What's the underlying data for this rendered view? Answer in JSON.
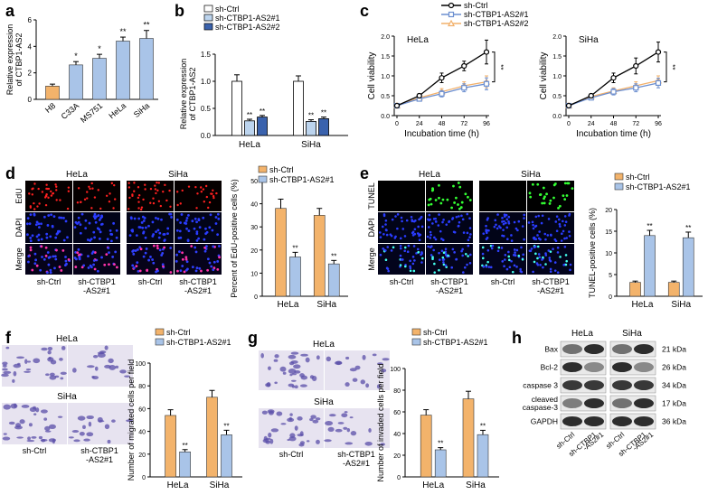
{
  "panels": {
    "a": {
      "label": "a",
      "chart_data": {
        "type": "bar",
        "ylabel_lines": [
          "Relative expression",
          "of CTBP1-AS2"
        ],
        "categories": [
          "H8",
          "C33A",
          "MS751",
          "HeLa",
          "SiHa"
        ],
        "values": [
          1.0,
          2.6,
          3.1,
          4.4,
          4.6
        ],
        "errors": [
          0.15,
          0.25,
          0.3,
          0.3,
          0.6
        ],
        "sig": [
          "",
          "*",
          "*",
          "**",
          "**"
        ],
        "colors": [
          "#f3b36b",
          "#a9c4e8",
          "#a9c4e8",
          "#a9c4e8",
          "#a9c4e8"
        ],
        "yticks": [
          0,
          2,
          4,
          6
        ],
        "ylim": [
          0,
          6
        ]
      }
    },
    "b": {
      "label": "b",
      "chart_data": {
        "type": "bar",
        "ylabel_lines": [
          "Relative expression",
          "of CTBP1-AS2"
        ],
        "groups": [
          "HeLa",
          "SiHa"
        ],
        "series": [
          {
            "name": "sh-Ctrl",
            "values": [
              1.0,
              1.0
            ],
            "errors": [
              0.12,
              0.1
            ],
            "color": "#ffffff"
          },
          {
            "name": "sh-CTBP1-AS2#1",
            "values": [
              0.27,
              0.26
            ],
            "errors": [
              0.03,
              0.03
            ],
            "color": "#bcd4ee"
          },
          {
            "name": "sh-CTBP1-AS2#2",
            "values": [
              0.34,
              0.31
            ],
            "errors": [
              0.03,
              0.03
            ],
            "color": "#3a62ad"
          }
        ],
        "sig": [
          "**",
          "**"
        ],
        "yticks": [
          0.0,
          0.5,
          1.0,
          1.5
        ],
        "ylim": [
          0,
          1.5
        ]
      }
    },
    "c": {
      "label": "c",
      "legend": [
        "sh-Ctrl",
        "sh-CTBP1-AS2#1",
        "sh-CTBP1-AS2#2"
      ],
      "charts": [
        {
          "type": "line",
          "title": "HeLa",
          "xlabel": "Incubation time (h)",
          "ylabel": "Cell viability",
          "x": [
            0,
            24,
            48,
            72,
            96
          ],
          "xticks": [
            0,
            24,
            48,
            72,
            96
          ],
          "yticks": [
            0.0,
            0.5,
            1.0,
            1.5,
            2.0
          ],
          "ylim": [
            0,
            2.0
          ],
          "series": [
            {
              "name": "sh-Ctrl",
              "values": [
                0.25,
                0.5,
                0.95,
                1.25,
                1.6
              ],
              "errors": [
                0.02,
                0.05,
                0.12,
                0.12,
                0.3
              ],
              "color": "#000000",
              "marker": "circle"
            },
            {
              "name": "sh-CTBP1-AS2#1",
              "values": [
                0.25,
                0.42,
                0.55,
                0.7,
                0.8
              ],
              "errors": [
                0.02,
                0.05,
                0.08,
                0.1,
                0.15
              ],
              "color": "#6c8fd0",
              "marker": "square"
            },
            {
              "name": "sh-CTBP1-AS2#2",
              "values": [
                0.25,
                0.45,
                0.6,
                0.75,
                0.85
              ],
              "errors": [
                0.02,
                0.05,
                0.08,
                0.1,
                0.15
              ],
              "color": "#f2b06a",
              "marker": "triangle"
            }
          ],
          "sig": "**"
        },
        {
          "type": "line",
          "title": "SiHa",
          "xlabel": "Incubation time (h)",
          "ylabel": "Cell viability",
          "x": [
            0,
            24,
            48,
            72,
            96
          ],
          "xticks": [
            0,
            24,
            48,
            72,
            96
          ],
          "yticks": [
            0.0,
            0.5,
            1.0,
            1.5,
            2.0
          ],
          "ylim": [
            0,
            2.0
          ],
          "series": [
            {
              "name": "sh-Ctrl",
              "values": [
                0.25,
                0.5,
                0.95,
                1.25,
                1.6
              ],
              "errors": [
                0.02,
                0.05,
                0.12,
                0.2,
                0.25
              ],
              "color": "#000000",
              "marker": "circle"
            },
            {
              "name": "sh-CTBP1-AS2#1",
              "values": [
                0.25,
                0.45,
                0.6,
                0.7,
                0.82
              ],
              "errors": [
                0.02,
                0.05,
                0.08,
                0.1,
                0.12
              ],
              "color": "#6c8fd0",
              "marker": "square"
            },
            {
              "name": "sh-CTBP1-AS2#2",
              "values": [
                0.25,
                0.48,
                0.62,
                0.75,
                0.88
              ],
              "errors": [
                0.02,
                0.05,
                0.08,
                0.1,
                0.12
              ],
              "color": "#f2b06a",
              "marker": "triangle"
            }
          ],
          "sig": "**"
        }
      ]
    },
    "d": {
      "label": "d",
      "cell_lines": [
        "HeLa",
        "SiHa"
      ],
      "rows": [
        "EdU",
        "DAPI",
        "Merge"
      ],
      "cols": [
        "sh-Ctrl",
        "sh-CTBP1\n-AS2#1"
      ],
      "col_labels": [
        "sh-Ctrl",
        "sh-CTBP1",
        "-AS2#1"
      ],
      "chart_data": {
        "type": "bar",
        "ylabel": "Percent of EdU-positive cells (%)",
        "groups": [
          "HeLa",
          "SiHa"
        ],
        "series": [
          {
            "name": "sh-Ctrl",
            "values": [
              38,
              35
            ],
            "errors": [
              4,
              3
            ],
            "color": "#f3b36b"
          },
          {
            "name": "sh-CTBP1-AS2#1",
            "values": [
              17,
              14
            ],
            "errors": [
              2,
              1.5
            ],
            "color": "#a9c4e8"
          }
        ],
        "sig": [
          "**",
          "**"
        ],
        "yticks": [
          0,
          10,
          20,
          30,
          40,
          50
        ],
        "ylim": [
          0,
          50
        ]
      }
    },
    "e": {
      "label": "e",
      "cell_lines": [
        "HeLa",
        "SiHa"
      ],
      "rows": [
        "TUNEL",
        "DAPI",
        "Merge"
      ],
      "col_labels": [
        "sh-Ctrl",
        "sh-CTBP1",
        "-AS2#1"
      ],
      "chart_data": {
        "type": "bar",
        "ylabel": "TUNEL-positive cells (%)",
        "groups": [
          "HeLa",
          "SiHa"
        ],
        "series": [
          {
            "name": "sh-Ctrl",
            "values": [
              3.2,
              3.2
            ],
            "errors": [
              0.3,
              0.3
            ],
            "color": "#f3b36b"
          },
          {
            "name": "sh-CTBP1-AS2#1",
            "values": [
              14,
              13.5
            ],
            "errors": [
              1.2,
              1.3
            ],
            "color": "#a9c4e8"
          }
        ],
        "sig": [
          "**",
          "**"
        ],
        "yticks": [
          0,
          5,
          10,
          15,
          20
        ],
        "ylim": [
          0,
          20
        ]
      }
    },
    "f": {
      "label": "f",
      "cell_lines": [
        "HeLa",
        "SiHa"
      ],
      "col_labels": [
        "sh-Ctrl",
        "sh-CTBP1",
        "-AS2#1"
      ],
      "chart_data": {
        "type": "bar",
        "ylabel_lines": [
          "Number of migrated cells per field"
        ],
        "groups": [
          "HeLa",
          "SiHa"
        ],
        "series": [
          {
            "name": "sh-Ctrl",
            "values": [
              54,
              70
            ],
            "errors": [
              5,
              6
            ],
            "color": "#f3b36b"
          },
          {
            "name": "sh-CTBP1-AS2#1",
            "values": [
              22,
              37
            ],
            "errors": [
              2,
              4
            ],
            "color": "#a9c4e8"
          }
        ],
        "sig": [
          "**",
          "**"
        ],
        "yticks": [
          0,
          20,
          40,
          60,
          80,
          100
        ],
        "ylim": [
          0,
          100
        ]
      }
    },
    "g": {
      "label": "g",
      "cell_lines": [
        "HeLa",
        "SiHa"
      ],
      "col_labels": [
        "sh-Ctrl",
        "sh-CTBP1",
        "-AS2#1"
      ],
      "chart_data": {
        "type": "bar",
        "ylabel_lines": [
          "Number of invaded cells per field"
        ],
        "groups": [
          "HeLa",
          "SiHa"
        ],
        "series": [
          {
            "name": "sh-Ctrl",
            "values": [
              57,
              72
            ],
            "errors": [
              5,
              7
            ],
            "color": "#f3b36b"
          },
          {
            "name": "sh-CTBP1-AS2#1",
            "values": [
              25,
              39
            ],
            "errors": [
              2,
              4
            ],
            "color": "#a9c4e8"
          }
        ],
        "sig": [
          "**",
          "**"
        ],
        "yticks": [
          0,
          20,
          40,
          60,
          80,
          100
        ],
        "ylim": [
          0,
          100
        ]
      }
    },
    "h": {
      "label": "h",
      "cell_lines": [
        "HeLa",
        "SiHa"
      ],
      "proteins": [
        "Bax",
        "Bcl-2",
        "caspase 3",
        "cleaved\ncaspase-3",
        "GAPDH"
      ],
      "protein_lines": [
        [
          "Bax"
        ],
        [
          "Bcl-2"
        ],
        [
          "caspase 3"
        ],
        [
          "cleaved",
          "caspase-3"
        ],
        [
          "GAPDH"
        ]
      ],
      "sizes": [
        "21 kDa",
        "26 kDa",
        "34 kDa",
        "17 kDa",
        "36 kDa"
      ],
      "lanes": [
        [
          "sh-Ctrl"
        ],
        [
          "sh-CTBP1",
          "-AS2#1"
        ],
        [
          "sh-Ctrl"
        ],
        [
          "sh-CTBP1",
          "-AS2#1"
        ]
      ],
      "band_intensity": [
        [
          0.55,
          0.85,
          0.55,
          0.85
        ],
        [
          0.85,
          0.45,
          0.85,
          0.45
        ],
        [
          0.8,
          0.8,
          0.8,
          0.8
        ],
        [
          0.5,
          0.85,
          0.55,
          0.85
        ],
        [
          0.85,
          0.85,
          0.85,
          0.85
        ]
      ]
    }
  }
}
